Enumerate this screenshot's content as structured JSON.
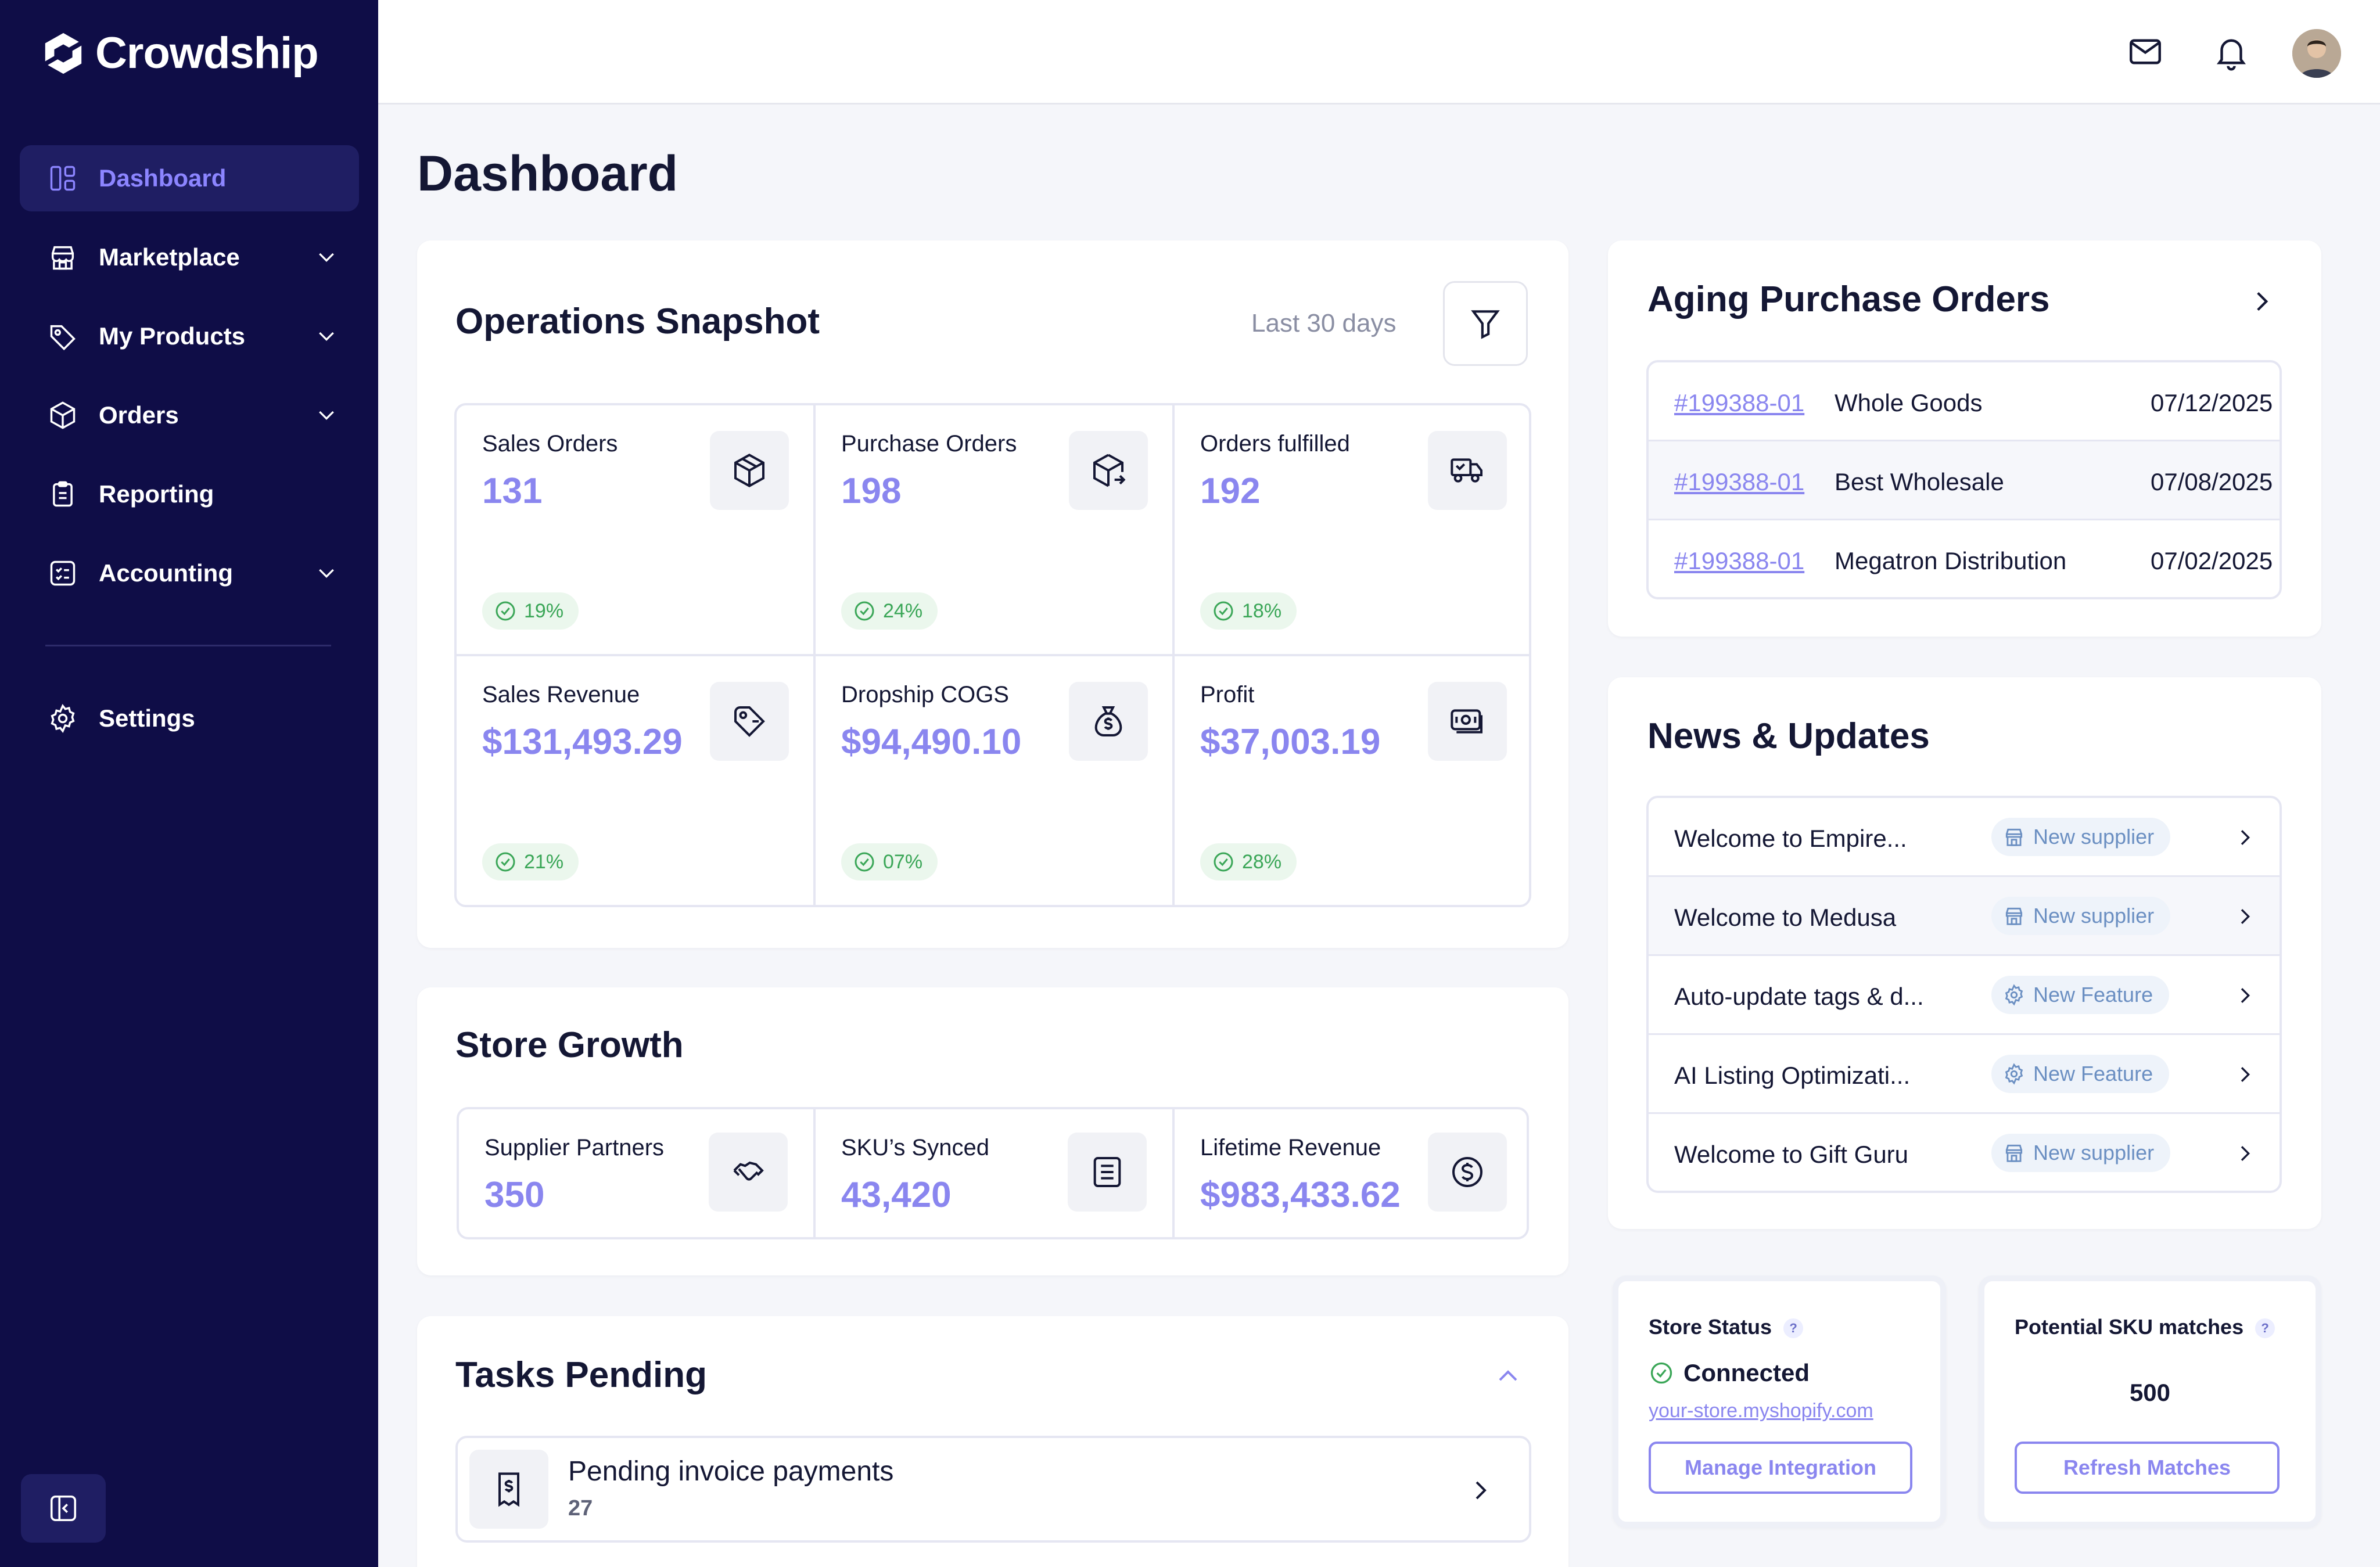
{
  "brand": {
    "name": "Crowdship"
  },
  "sidebar": {
    "items": [
      {
        "label": "Dashboard",
        "icon": "dashboard-icon",
        "active": true
      },
      {
        "label": "Marketplace",
        "icon": "store-icon"
      },
      {
        "label": "My Products",
        "icon": "tag-icon"
      },
      {
        "label": "Orders",
        "icon": "box-icon"
      },
      {
        "label": "Reporting",
        "icon": "clipboard-icon"
      },
      {
        "label": "Accounting",
        "icon": "ledger-icon"
      }
    ],
    "settings_label": "Settings"
  },
  "page": {
    "title": "Dashboard"
  },
  "operations": {
    "title": "Operations Snapshot",
    "range": "Last 30 days",
    "metrics": [
      {
        "label": "Sales Orders",
        "value": "131",
        "change": "19%"
      },
      {
        "label": "Purchase Orders",
        "value": "198",
        "change": "24%"
      },
      {
        "label": "Orders fulfilled",
        "value": "192",
        "change": "18%"
      },
      {
        "label": "Sales Revenue",
        "value": "$131,493.29",
        "change": "21%"
      },
      {
        "label": "Dropship COGS",
        "value": "$94,490.10",
        "change": "07%"
      },
      {
        "label": "Profit",
        "value": "$37,003.19",
        "change": "28%"
      }
    ]
  },
  "growth": {
    "title": "Store Growth",
    "metrics": [
      {
        "label": "Supplier Partners",
        "value": "350"
      },
      {
        "label": "SKU’s Synced",
        "value": "43,420"
      },
      {
        "label": "Lifetime Revenue",
        "value": "$983,433.62"
      }
    ]
  },
  "tasks": {
    "title": "Tasks Pending",
    "items": [
      {
        "label": "Pending invoice payments",
        "count": "27"
      }
    ]
  },
  "aging": {
    "title": "Aging Purchase Orders",
    "rows": [
      {
        "po": "#199388-01",
        "vendor": "Whole Goods",
        "date": "07/12/2025"
      },
      {
        "po": "#199388-01",
        "vendor": "Best Wholesale",
        "date": "07/08/2025"
      },
      {
        "po": "#199388-01",
        "vendor": "Megatron Distribution",
        "date": "07/02/2025"
      }
    ]
  },
  "news": {
    "title": "News & Updates",
    "items": [
      {
        "title": "Welcome to Empire...",
        "tag": "New supplier"
      },
      {
        "title": "Welcome to Medusa",
        "tag": "New supplier"
      },
      {
        "title": "Auto-update tags & d...",
        "tag": "New Feature"
      },
      {
        "title": "AI Listing Optimizati...",
        "tag": "New Feature"
      },
      {
        "title": "Welcome to Gift Guru",
        "tag": "New supplier"
      }
    ]
  },
  "store_status": {
    "title": "Store Status",
    "help": "?",
    "status": "Connected",
    "url": "your-store.myshopify.com",
    "button": "Manage Integration"
  },
  "sku_matches": {
    "title": "Potential SKU matches",
    "help": "?",
    "value": "500",
    "button": "Refresh Matches"
  },
  "colors": {
    "sidebar_bg": "#0f0d47",
    "accent": "#8a86ef",
    "success": "#3aa657"
  }
}
